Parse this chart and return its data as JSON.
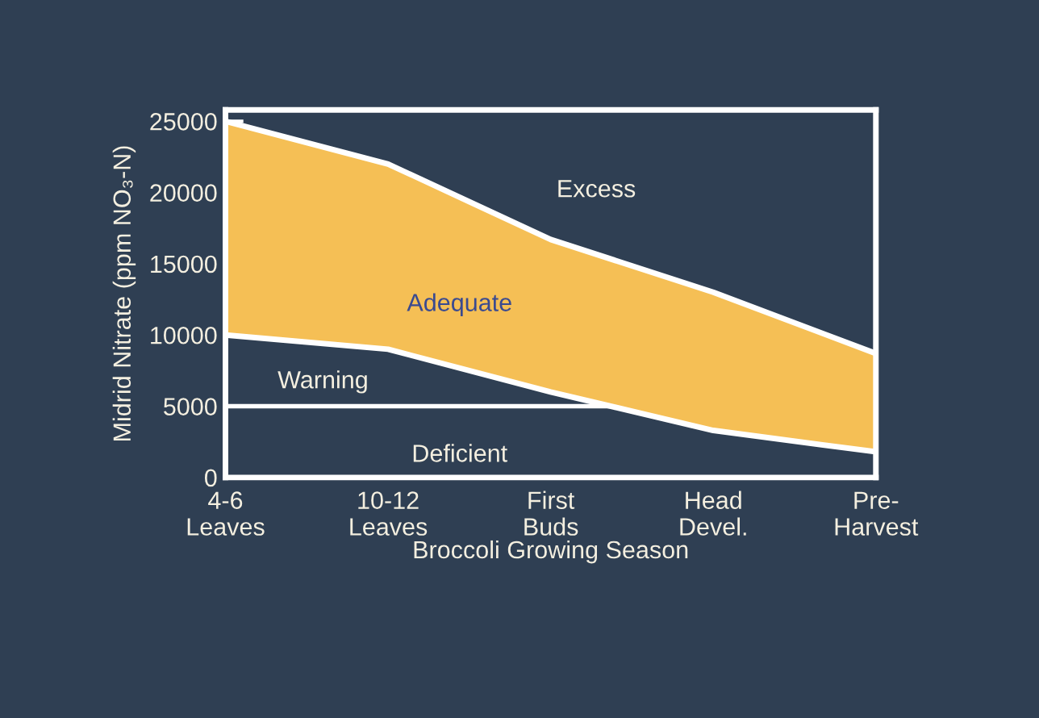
{
  "chart_data": {
    "type": "area",
    "stacked": true,
    "categories": [
      "4-6\nLeaves",
      "10-12\nLeaves",
      "First\nBuds",
      "Head\nDevel.",
      "Pre-\nHarvest"
    ],
    "series": [
      {
        "color": "#2f3f53",
        "values": [
          10000,
          9000,
          6000,
          3300,
          1800
        ]
      },
      {
        "color": "#f5bf55",
        "values": [
          15000,
          13000,
          10700,
          9700,
          6900
        ]
      }
    ],
    "xlabel": "Broccoli Growing Season",
    "ylabel": "Midrid Nitrate (ppm NO₃-N)",
    "ylim": [
      0,
      25800
    ],
    "yticks": [
      0,
      5000,
      10000,
      15000,
      20000,
      25000
    ],
    "ref_lines": [
      {
        "axis": "y",
        "value": 5000,
        "color": "#ffffff"
      }
    ],
    "annotations": [
      "Excess",
      "Adequate",
      "Warning",
      "Deficient"
    ],
    "grid": false,
    "legend": false
  }
}
